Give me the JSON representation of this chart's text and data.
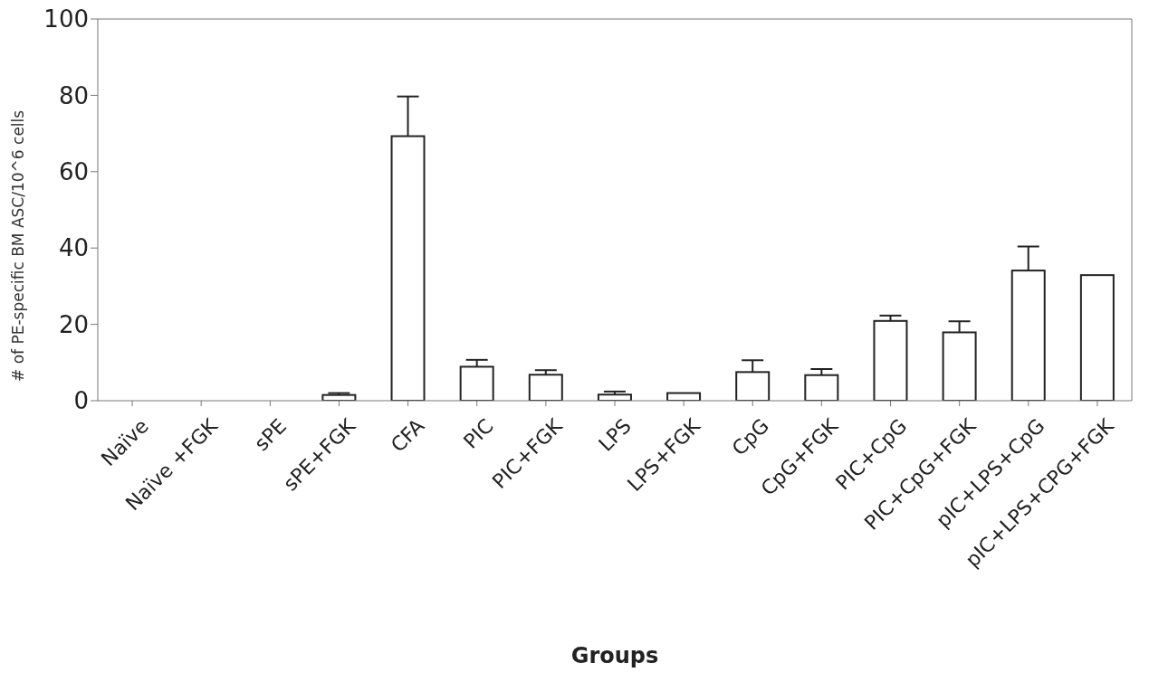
{
  "chart_data": {
    "type": "bar",
    "xlabel": "Groups",
    "ylabel": "# of PE-specific BM ASC/10^6 cells",
    "categories": [
      "Naïve",
      "Naïve +FGK",
      "sPE",
      "sPE+FGK",
      "CFA",
      "PIC",
      "PIC+FGK",
      "LPS",
      "LPS+FGK",
      "CpG",
      "CpG+FGK",
      "PIC+CpG",
      "PIC+CpG+FGK",
      "pIC+LPS+CpG",
      "pIC+LPS+CPG+FGK"
    ],
    "values": [
      0,
      0,
      0,
      1.5,
      69.3,
      8.9,
      6.8,
      1.6,
      2.0,
      7.5,
      6.7,
      20.9,
      17.9,
      34.1,
      32.9
    ],
    "errors": [
      null,
      null,
      null,
      [
        1.5,
        2.0
      ],
      [
        69.3,
        79.7
      ],
      [
        8.9,
        10.7
      ],
      [
        6.8,
        8.0
      ],
      [
        1.6,
        2.4
      ],
      null,
      [
        7.5,
        10.6
      ],
      [
        6.7,
        8.3
      ],
      [
        20.9,
        22.3
      ],
      [
        17.9,
        20.8
      ],
      [
        34.1,
        40.4
      ],
      null
    ],
    "color": "#ffffff",
    "ylim": [
      0,
      100
    ],
    "yticks": [
      0,
      20,
      40,
      60,
      80,
      100
    ],
    "grid": false,
    "legend": false
  }
}
